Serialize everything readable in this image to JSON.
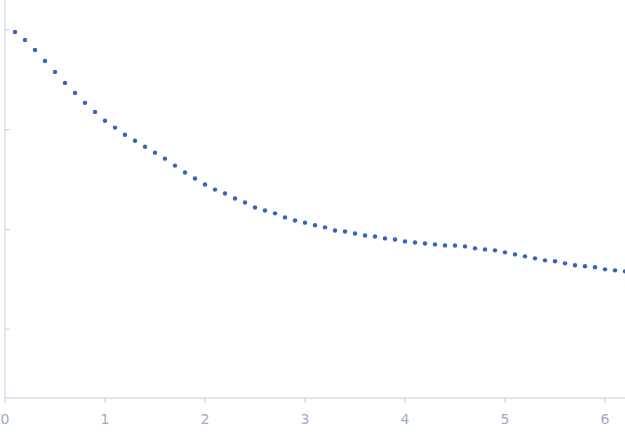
{
  "chart_data": {
    "type": "scatter",
    "log": "y",
    "tick_labels": "x",
    "color": "#3563b9",
    "marker": "circle",
    "xlim": [
      0,
      6.2
    ],
    "ylim": [
      0.000204,
      2.0
    ],
    "xticks": [
      0,
      1,
      2,
      3,
      4,
      5,
      6
    ],
    "yticks": [
      0.001,
      0.01,
      0.1,
      1
    ],
    "x": [
      0.1,
      0.2,
      0.3,
      0.4,
      0.5,
      0.6,
      0.7,
      0.8,
      0.9,
      1.0,
      1.1,
      1.2,
      1.3,
      1.4,
      1.5,
      1.6,
      1.7,
      1.8,
      1.9,
      2.0,
      2.1,
      2.2,
      2.3,
      2.4,
      2.5,
      2.6,
      2.7,
      2.8,
      2.9,
      3.0,
      3.1,
      3.2,
      3.3,
      3.4,
      3.5,
      3.6,
      3.7,
      3.8,
      3.9,
      4.0,
      4.1,
      4.2,
      4.3,
      4.4,
      4.5,
      4.6,
      4.7,
      4.8,
      4.9,
      5.0,
      5.1,
      5.2,
      5.3,
      5.4,
      5.5,
      5.6,
      5.7,
      5.8,
      5.9,
      6.0,
      6.1,
      6.2
    ],
    "values": [
      0.955,
      0.794,
      0.631,
      0.49,
      0.38,
      0.295,
      0.234,
      0.186,
      0.151,
      0.123,
      0.105,
      0.0891,
      0.0776,
      0.0676,
      0.0589,
      0.0513,
      0.0437,
      0.0372,
      0.0324,
      0.0282,
      0.0251,
      0.0229,
      0.0204,
      0.0186,
      0.0166,
      0.0155,
      0.0145,
      0.0132,
      0.0123,
      0.0117,
      0.011,
      0.0105,
      0.00977,
      0.00955,
      0.00912,
      0.00871,
      0.00851,
      0.00813,
      0.00794,
      0.00759,
      0.00741,
      0.00724,
      0.00708,
      0.00692,
      0.0069,
      0.00676,
      0.00646,
      0.00631,
      0.00617,
      0.00589,
      0.00562,
      0.00537,
      0.00513,
      0.0049,
      0.00479,
      0.00457,
      0.00437,
      0.00427,
      0.00417,
      0.00398,
      0.00389,
      0.0038
    ]
  }
}
